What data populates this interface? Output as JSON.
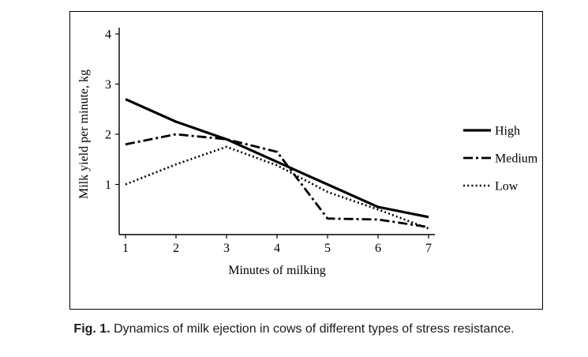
{
  "figure": {
    "caption_label": "Fig. 1.",
    "caption_text": " Dynamics of milk ejection in cows of different types of stress resistance."
  },
  "chart_data": {
    "type": "line",
    "title": "",
    "xlabel": "Minutes of milking",
    "ylabel": "Milk yield per minute, kg",
    "x": [
      1,
      2,
      3,
      4,
      5,
      6,
      7
    ],
    "x_tick_labels": [
      "1",
      "2",
      "3",
      "4",
      "5",
      "6",
      "7"
    ],
    "ylim": [
      0,
      4
    ],
    "y_ticks": [
      1,
      2,
      3,
      4
    ],
    "grid": false,
    "legend_position": "right",
    "line_color": "#000000",
    "series": [
      {
        "name": "High",
        "style": "solid",
        "values": [
          2.7,
          2.25,
          1.9,
          1.45,
          1.0,
          0.55,
          0.35
        ]
      },
      {
        "name": "Medium",
        "style": "dash-dot",
        "values": [
          1.8,
          2.0,
          1.9,
          1.65,
          0.32,
          0.3,
          0.15
        ]
      },
      {
        "name": "Low",
        "style": "dotted",
        "values": [
          1.0,
          1.4,
          1.75,
          1.38,
          0.85,
          0.5,
          0.12
        ]
      }
    ]
  }
}
